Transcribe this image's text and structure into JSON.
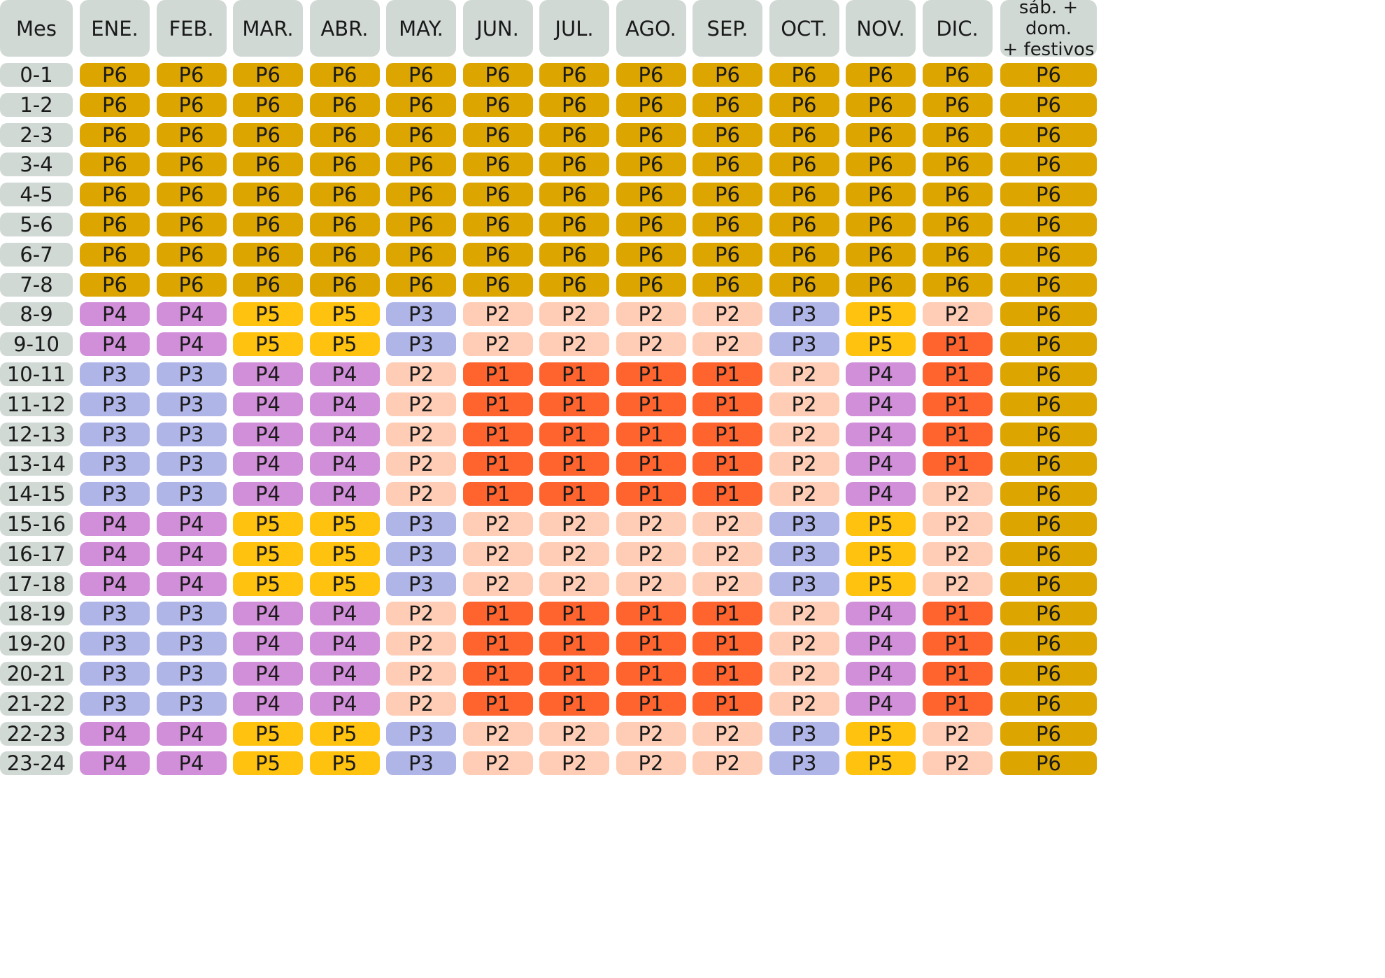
{
  "table": {
    "corner_label": "Mes",
    "columns": [
      "ENE.",
      "FEB.",
      "MAR.",
      "ABR.",
      "MAY.",
      "JUN.",
      "JUL.",
      "AGO.",
      "SEP.",
      "OCT.",
      "NOV.",
      "DIC.",
      "sáb. + dom.\n+ festivos"
    ],
    "hours": [
      "0-1",
      "1-2",
      "2-3",
      "3-4",
      "4-5",
      "5-6",
      "6-7",
      "7-8",
      "8-9",
      "9-10",
      "10-11",
      "11-12",
      "12-13",
      "13-14",
      "14-15",
      "15-16",
      "16-17",
      "17-18",
      "18-19",
      "19-20",
      "20-21",
      "21-22",
      "22-23",
      "23-24"
    ],
    "rows": [
      [
        "P6",
        "P6",
        "P6",
        "P6",
        "P6",
        "P6",
        "P6",
        "P6",
        "P6",
        "P6",
        "P6",
        "P6",
        "P6"
      ],
      [
        "P6",
        "P6",
        "P6",
        "P6",
        "P6",
        "P6",
        "P6",
        "P6",
        "P6",
        "P6",
        "P6",
        "P6",
        "P6"
      ],
      [
        "P6",
        "P6",
        "P6",
        "P6",
        "P6",
        "P6",
        "P6",
        "P6",
        "P6",
        "P6",
        "P6",
        "P6",
        "P6"
      ],
      [
        "P6",
        "P6",
        "P6",
        "P6",
        "P6",
        "P6",
        "P6",
        "P6",
        "P6",
        "P6",
        "P6",
        "P6",
        "P6"
      ],
      [
        "P6",
        "P6",
        "P6",
        "P6",
        "P6",
        "P6",
        "P6",
        "P6",
        "P6",
        "P6",
        "P6",
        "P6",
        "P6"
      ],
      [
        "P6",
        "P6",
        "P6",
        "P6",
        "P6",
        "P6",
        "P6",
        "P6",
        "P6",
        "P6",
        "P6",
        "P6",
        "P6"
      ],
      [
        "P6",
        "P6",
        "P6",
        "P6",
        "P6",
        "P6",
        "P6",
        "P6",
        "P6",
        "P6",
        "P6",
        "P6",
        "P6"
      ],
      [
        "P6",
        "P6",
        "P6",
        "P6",
        "P6",
        "P6",
        "P6",
        "P6",
        "P6",
        "P6",
        "P6",
        "P6",
        "P6"
      ],
      [
        "P4",
        "P4",
        "P5",
        "P5",
        "P3",
        "P2",
        "P2",
        "P2",
        "P2",
        "P3",
        "P5",
        "P2",
        "P6"
      ],
      [
        "P4",
        "P4",
        "P5",
        "P5",
        "P3",
        "P2",
        "P2",
        "P2",
        "P2",
        "P3",
        "P5",
        "P1",
        "P6"
      ],
      [
        "P3",
        "P3",
        "P4",
        "P4",
        "P2",
        "P1",
        "P1",
        "P1",
        "P1",
        "P2",
        "P4",
        "P1",
        "P6"
      ],
      [
        "P3",
        "P3",
        "P4",
        "P4",
        "P2",
        "P1",
        "P1",
        "P1",
        "P1",
        "P2",
        "P4",
        "P1",
        "P6"
      ],
      [
        "P3",
        "P3",
        "P4",
        "P4",
        "P2",
        "P1",
        "P1",
        "P1",
        "P1",
        "P2",
        "P4",
        "P1",
        "P6"
      ],
      [
        "P3",
        "P3",
        "P4",
        "P4",
        "P2",
        "P1",
        "P1",
        "P1",
        "P1",
        "P2",
        "P4",
        "P1",
        "P6"
      ],
      [
        "P3",
        "P3",
        "P4",
        "P4",
        "P2",
        "P1",
        "P1",
        "P1",
        "P1",
        "P2",
        "P4",
        "P2",
        "P6"
      ],
      [
        "P4",
        "P4",
        "P5",
        "P5",
        "P3",
        "P2",
        "P2",
        "P2",
        "P2",
        "P3",
        "P5",
        "P2",
        "P6"
      ],
      [
        "P4",
        "P4",
        "P5",
        "P5",
        "P3",
        "P2",
        "P2",
        "P2",
        "P2",
        "P3",
        "P5",
        "P2",
        "P6"
      ],
      [
        "P4",
        "P4",
        "P5",
        "P5",
        "P3",
        "P2",
        "P2",
        "P2",
        "P2",
        "P3",
        "P5",
        "P2",
        "P6"
      ],
      [
        "P3",
        "P3",
        "P4",
        "P4",
        "P2",
        "P1",
        "P1",
        "P1",
        "P1",
        "P2",
        "P4",
        "P1",
        "P6"
      ],
      [
        "P3",
        "P3",
        "P4",
        "P4",
        "P2",
        "P1",
        "P1",
        "P1",
        "P1",
        "P2",
        "P4",
        "P1",
        "P6"
      ],
      [
        "P3",
        "P3",
        "P4",
        "P4",
        "P2",
        "P1",
        "P1",
        "P1",
        "P1",
        "P2",
        "P4",
        "P1",
        "P6"
      ],
      [
        "P3",
        "P3",
        "P4",
        "P4",
        "P2",
        "P1",
        "P1",
        "P1",
        "P1",
        "P2",
        "P4",
        "P1",
        "P6"
      ],
      [
        "P4",
        "P4",
        "P5",
        "P5",
        "P3",
        "P2",
        "P2",
        "P2",
        "P2",
        "P3",
        "P5",
        "P2",
        "P6"
      ],
      [
        "P4",
        "P4",
        "P5",
        "P5",
        "P3",
        "P2",
        "P2",
        "P2",
        "P2",
        "P3",
        "P5",
        "P2",
        "P6"
      ]
    ]
  },
  "colors": {
    "header_bg": "#d1d9d5",
    "P1": "#ff632e",
    "P2": "#ffcdb5",
    "P3": "#b0b5e8",
    "P4": "#d18fd9",
    "P5": "#ffc20f",
    "P6": "#dca500"
  }
}
